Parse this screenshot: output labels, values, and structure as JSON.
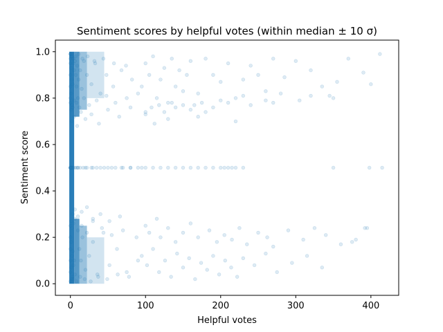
{
  "chart_data": {
    "type": "scatter",
    "title": "Sentiment scores by helpful votes (within median ± 10 σ)",
    "xlabel": "Helpful votes",
    "ylabel": "Sentiment score",
    "xlim": [
      -20,
      437
    ],
    "ylim": [
      -0.05,
      1.05
    ],
    "xticks": [
      0,
      100,
      200,
      300,
      400
    ],
    "yticks": [
      0.0,
      0.2,
      0.4,
      0.6,
      0.8,
      1.0
    ],
    "xtick_labels": [
      "0",
      "100",
      "200",
      "300",
      "400"
    ],
    "ytick_labels": [
      "0.0",
      "0.2",
      "0.4",
      "0.6",
      "0.8",
      "1.0"
    ],
    "grid": false,
    "marker": "circle",
    "point_alpha": 0.15,
    "series": [
      {
        "color": "#1f77b4",
        "x": [
          0,
          0,
          0,
          0,
          0,
          0,
          0,
          0,
          0,
          0,
          0,
          0,
          1,
          1,
          1,
          1,
          1,
          1,
          2,
          2,
          2,
          2,
          3,
          3,
          3,
          3,
          4,
          4,
          5,
          5,
          6,
          6,
          7,
          8,
          9,
          10,
          11,
          12,
          13,
          14,
          15,
          16,
          18,
          20,
          22,
          25,
          28,
          30,
          33,
          36,
          40,
          44,
          48,
          52,
          57,
          62,
          68,
          75,
          82,
          90,
          0,
          1,
          2,
          3,
          5,
          8,
          12,
          18,
          25,
          35,
          48,
          60,
          75,
          90,
          0,
          1,
          2,
          4,
          6,
          10,
          15,
          22,
          30,
          42,
          55,
          70,
          88,
          2,
          5,
          9,
          14,
          20,
          28,
          38,
          50,
          65,
          80,
          100,
          0,
          0,
          0,
          1,
          1,
          2,
          3,
          4,
          6,
          8,
          10,
          13,
          17,
          22,
          28,
          35,
          45,
          55,
          68,
          80,
          95,
          3,
          6,
          10,
          15,
          22,
          30,
          40,
          52,
          66,
          0,
          1,
          2,
          4,
          7,
          11,
          16,
          23,
          32,
          44,
          58,
          74,
          2,
          4,
          8,
          13,
          19,
          27,
          37,
          49,
          63,
          78,
          95,
          100,
          105,
          110,
          115,
          120,
          125,
          130,
          135,
          140,
          145,
          150,
          155,
          160,
          165,
          170,
          180,
          190,
          200,
          210,
          220,
          230,
          240,
          250,
          260,
          270,
          285,
          300,
          320,
          335,
          345,
          355,
          370,
          390,
          400,
          412,
          100,
          108,
          112,
          118,
          125,
          130,
          135,
          140,
          150,
          160,
          170,
          175,
          180,
          190,
          200,
          210,
          220,
          230,
          240,
          260,
          270,
          280,
          305,
          320,
          350,
          100,
          105,
          115,
          120,
          130,
          140,
          150,
          160,
          170,
          185,
          195,
          205,
          215,
          225,
          235,
          250,
          262,
          270,
          290,
          310,
          325,
          340,
          380,
          395,
          95,
          102,
          110,
          118,
          126,
          134,
          142,
          150,
          158,
          166,
          174,
          182,
          190,
          198,
          206,
          214,
          222,
          230,
          245,
          260,
          275,
          295,
          315,
          335,
          360,
          375,
          392,
          10,
          20,
          30,
          40,
          50,
          60,
          70,
          80,
          90,
          100,
          110,
          120,
          130,
          140,
          150,
          160,
          170,
          180,
          190,
          200,
          205,
          210,
          215,
          220,
          230,
          350,
          398,
          415
        ],
        "y": [
          0.99,
          0.97,
          0.95,
          0.9,
          0.85,
          0.8,
          0.2,
          0.15,
          0.1,
          0.05,
          0.01,
          0.5,
          0.99,
          0.93,
          0.82,
          0.18,
          0.07,
          0.5,
          0.98,
          0.88,
          0.12,
          0.02,
          0.97,
          0.86,
          0.14,
          0.03,
          0.95,
          0.08,
          0.92,
          0.1,
          0.96,
          0.04,
          0.9,
          0.85,
          0.94,
          0.8,
          0.88,
          0.15,
          0.92,
          0.1,
          0.84,
          0.2,
          0.96,
          0.06,
          0.9,
          0.12,
          0.86,
          0.18,
          0.95,
          0.04,
          0.82,
          0.22,
          0.9,
          0.08,
          0.85,
          0.15,
          0.92,
          0.05,
          0.88,
          0.1,
          0.78,
          0.75,
          0.77,
          0.76,
          0.79,
          0.78,
          0.76,
          0.8,
          0.77,
          0.79,
          0.81,
          0.78,
          0.8,
          0.82,
          0.25,
          0.27,
          0.24,
          0.26,
          0.28,
          0.23,
          0.25,
          0.22,
          0.27,
          0.24,
          0.21,
          0.23,
          0.2,
          0.7,
          0.72,
          0.68,
          0.74,
          0.71,
          0.73,
          0.69,
          0.75,
          0.72,
          0.76,
          0.74,
          0.5,
          0.5,
          0.5,
          0.5,
          0.5,
          0.5,
          0.5,
          0.5,
          0.5,
          0.5,
          0.5,
          0.5,
          0.5,
          0.5,
          0.5,
          0.5,
          0.5,
          0.5,
          0.5,
          0.5,
          0.5,
          0.3,
          0.32,
          0.29,
          0.31,
          0.33,
          0.28,
          0.3,
          0.27,
          0.29,
          0.99,
          0.98,
          0.99,
          0.97,
          0.98,
          0.99,
          0.97,
          0.98,
          0.96,
          0.97,
          0.95,
          0.94,
          0.01,
          0.02,
          0.01,
          0.03,
          0.02,
          0.01,
          0.03,
          0.02,
          0.04,
          0.03,
          0.85,
          0.95,
          0.9,
          0.98,
          0.8,
          0.88,
          0.93,
          0.78,
          0.97,
          0.85,
          0.92,
          0.83,
          0.9,
          0.96,
          0.77,
          0.82,
          0.97,
          0.9,
          0.87,
          0.95,
          0.8,
          0.88,
          0.94,
          0.9,
          0.83,
          0.97,
          0.89,
          0.96,
          0.92,
          0.85,
          0.81,
          0.87,
          0.97,
          0.91,
          0.86,
          0.99,
          0.73,
          0.76,
          0.69,
          0.77,
          0.74,
          0.71,
          0.78,
          0.76,
          0.77,
          0.75,
          0.72,
          0.78,
          0.74,
          0.76,
          0.79,
          0.78,
          0.7,
          0.81,
          0.77,
          0.79,
          0.78,
          0.82,
          0.79,
          0.81,
          0.8,
          0.25,
          0.22,
          0.28,
          0.2,
          0.24,
          0.18,
          0.22,
          0.26,
          0.2,
          0.23,
          0.18,
          0.21,
          0.19,
          0.24,
          0.17,
          0.22,
          0.2,
          0.16,
          0.23,
          0.19,
          0.24,
          0.21,
          0.19,
          0.24,
          0.12,
          0.08,
          0.15,
          0.05,
          0.1,
          0.03,
          0.13,
          0.07,
          0.11,
          0.02,
          0.09,
          0.06,
          0.12,
          0.04,
          0.1,
          0.07,
          0.03,
          0.11,
          0.08,
          0.13,
          0.05,
          0.09,
          0.12,
          0.07,
          0.17,
          0.18,
          0.24,
          0.5,
          0.5,
          0.5,
          0.5,
          0.5,
          0.5,
          0.5,
          0.5,
          0.5,
          0.5,
          0.5,
          0.5,
          0.5,
          0.5,
          0.5,
          0.5,
          0.5,
          0.5,
          0.5,
          0.5,
          0.5,
          0.5,
          0.5,
          0.5,
          0.5,
          0.5,
          0.5,
          0.5
        ]
      }
    ]
  }
}
